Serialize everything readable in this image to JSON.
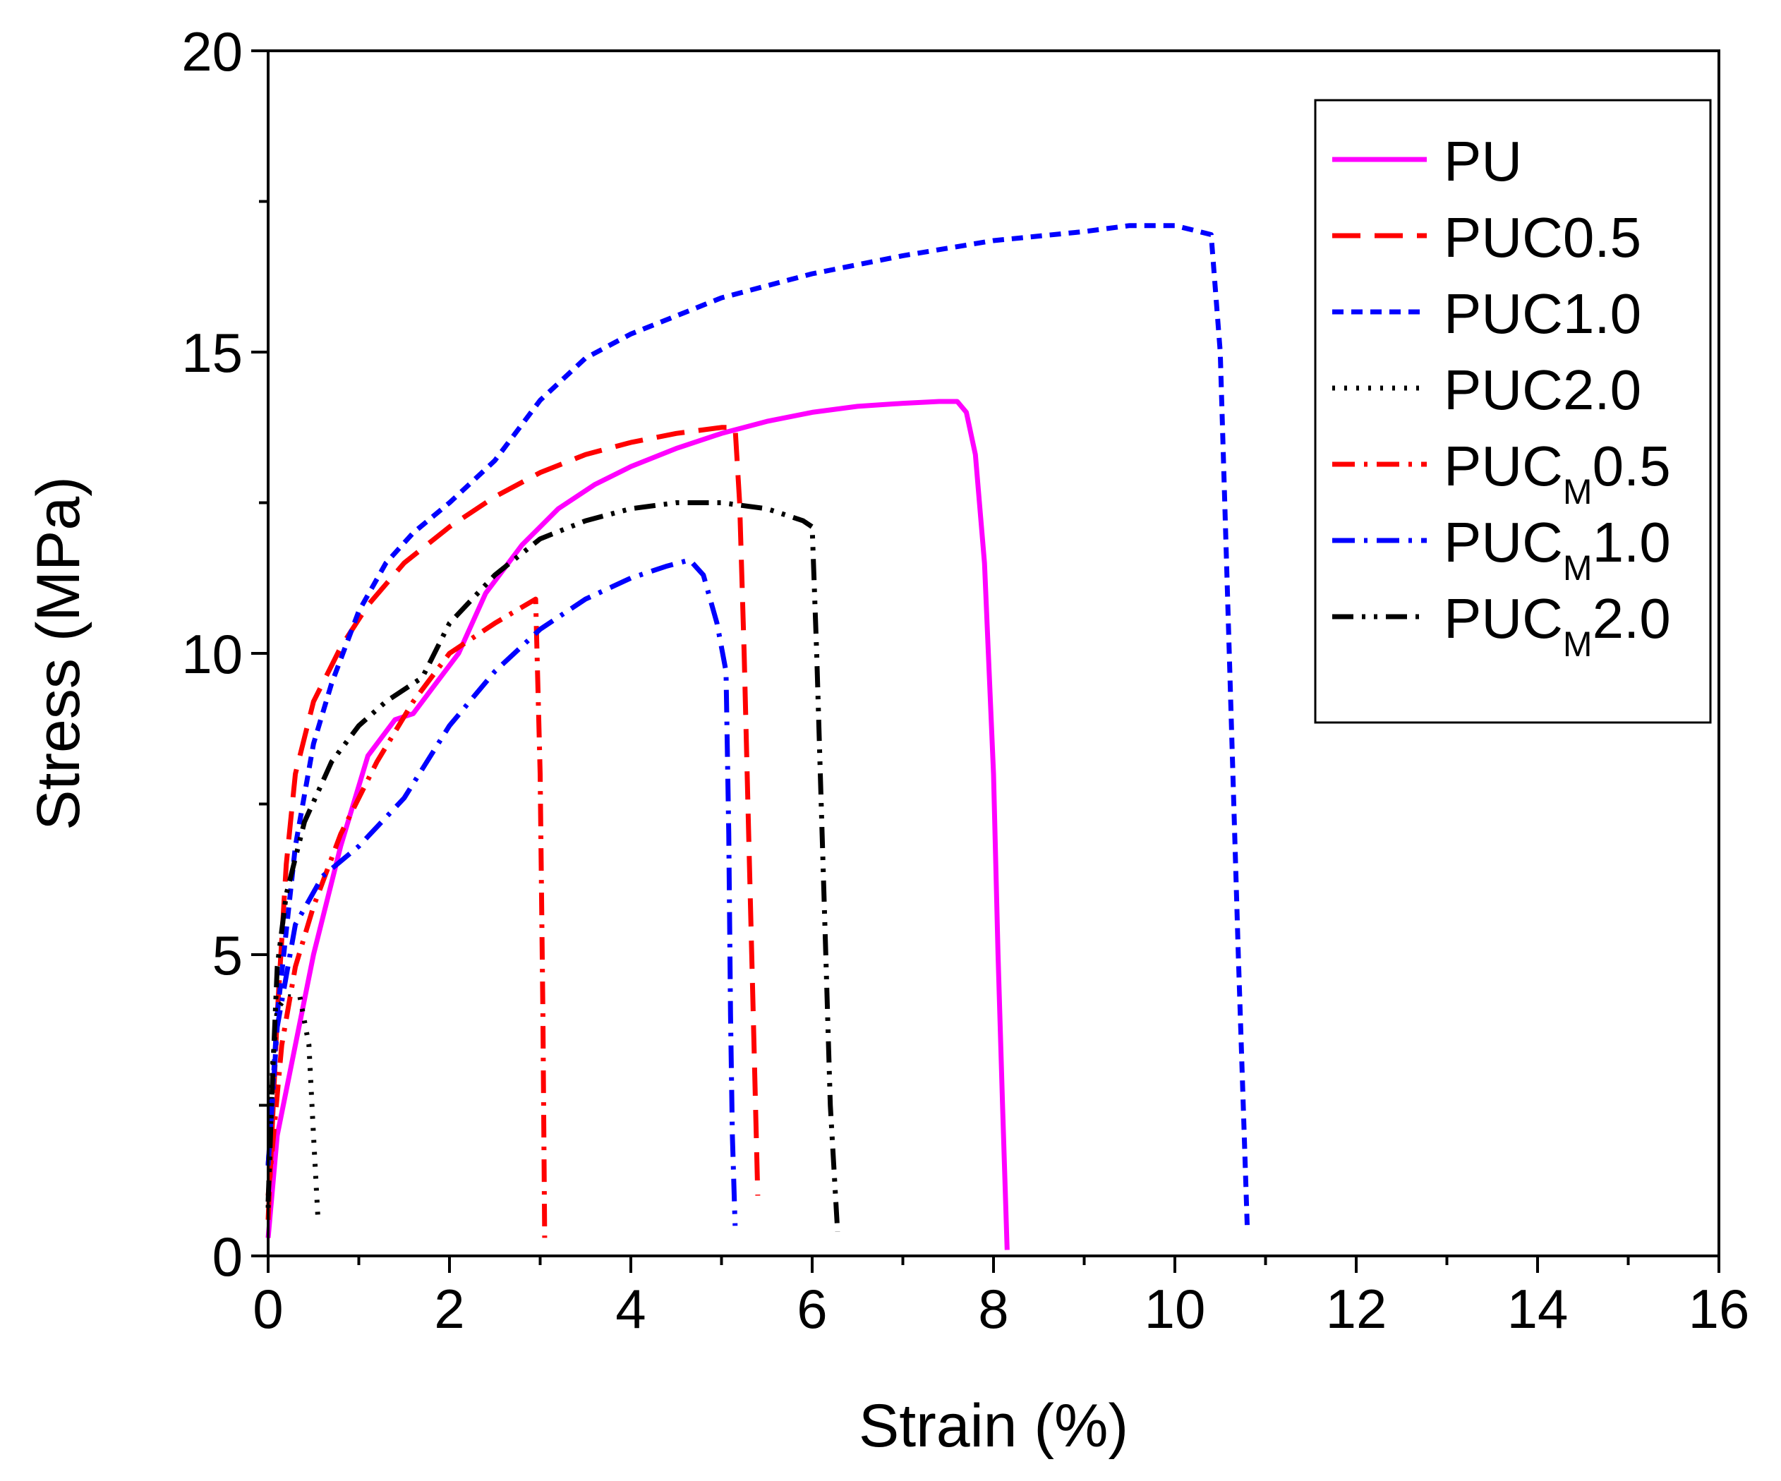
{
  "chart_data": {
    "type": "line",
    "title": "",
    "xlabel": "Strain (%)",
    "ylabel": "Stress (MPa)",
    "xlim": [
      0,
      16
    ],
    "ylim": [
      0,
      20
    ],
    "x_ticks": [
      0,
      2,
      4,
      6,
      8,
      10,
      12,
      14,
      16
    ],
    "y_ticks": [
      0,
      5,
      10,
      15,
      20
    ],
    "x_tick_labels": [
      "0",
      "2",
      "4",
      "6",
      "8",
      "10",
      "12",
      "14",
      "16"
    ],
    "y_tick_labels": [
      "0",
      "5",
      "10",
      "15",
      "20"
    ],
    "grid": false,
    "legend_position": "top-right",
    "series": [
      {
        "name": "PU",
        "label_main": "PU",
        "label_sub": "",
        "label_tail": "",
        "color": "#ff00ff",
        "dash": "solid",
        "points": [
          [
            0,
            0.3
          ],
          [
            0.1,
            2.0
          ],
          [
            0.3,
            3.5
          ],
          [
            0.5,
            5.0
          ],
          [
            0.8,
            6.8
          ],
          [
            1.1,
            8.3
          ],
          [
            1.4,
            8.9
          ],
          [
            1.6,
            9.0
          ],
          [
            1.8,
            9.4
          ],
          [
            2.1,
            10.0
          ],
          [
            2.4,
            11.0
          ],
          [
            2.8,
            11.8
          ],
          [
            3.2,
            12.4
          ],
          [
            3.6,
            12.8
          ],
          [
            4.0,
            13.1
          ],
          [
            4.5,
            13.4
          ],
          [
            5.0,
            13.65
          ],
          [
            5.5,
            13.85
          ],
          [
            6.0,
            14.0
          ],
          [
            6.5,
            14.1
          ],
          [
            7.0,
            14.15
          ],
          [
            7.4,
            14.18
          ],
          [
            7.6,
            14.18
          ],
          [
            7.7,
            14.0
          ],
          [
            7.8,
            13.3
          ],
          [
            7.9,
            11.5
          ],
          [
            8.0,
            8.0
          ],
          [
            8.05,
            5.0
          ],
          [
            8.1,
            2.5
          ],
          [
            8.15,
            0.1
          ]
        ]
      },
      {
        "name": "PUC0.5",
        "label_main": "PUC0.5",
        "label_sub": "",
        "label_tail": "",
        "color": "#ff0000",
        "dash": "long-dash",
        "points": [
          [
            0,
            0.6
          ],
          [
            0.1,
            4.0
          ],
          [
            0.2,
            6.5
          ],
          [
            0.3,
            8.0
          ],
          [
            0.5,
            9.2
          ],
          [
            0.8,
            10.1
          ],
          [
            1.1,
            10.8
          ],
          [
            1.5,
            11.5
          ],
          [
            2.0,
            12.1
          ],
          [
            2.5,
            12.6
          ],
          [
            3.0,
            13.0
          ],
          [
            3.5,
            13.3
          ],
          [
            4.0,
            13.5
          ],
          [
            4.5,
            13.65
          ],
          [
            5.0,
            13.75
          ],
          [
            5.15,
            13.75
          ],
          [
            5.2,
            12.5
          ],
          [
            5.25,
            10.0
          ],
          [
            5.3,
            7.0
          ],
          [
            5.35,
            4.0
          ],
          [
            5.4,
            1.0
          ]
        ]
      },
      {
        "name": "PUC1.0",
        "label_main": "PUC1.0",
        "label_sub": "",
        "label_tail": "",
        "color": "#0000ff",
        "dash": "short-dash",
        "points": [
          [
            0,
            1.5
          ],
          [
            0.1,
            4.0
          ],
          [
            0.3,
            6.8
          ],
          [
            0.5,
            8.5
          ],
          [
            0.7,
            9.5
          ],
          [
            1.0,
            10.7
          ],
          [
            1.3,
            11.5
          ],
          [
            1.6,
            12.0
          ],
          [
            2.0,
            12.5
          ],
          [
            2.5,
            13.2
          ],
          [
            3.0,
            14.2
          ],
          [
            3.5,
            14.9
          ],
          [
            4.0,
            15.3
          ],
          [
            5.0,
            15.9
          ],
          [
            6.0,
            16.3
          ],
          [
            7.0,
            16.6
          ],
          [
            8.0,
            16.85
          ],
          [
            9.0,
            17.0
          ],
          [
            9.5,
            17.1
          ],
          [
            10.0,
            17.1
          ],
          [
            10.4,
            16.95
          ],
          [
            10.5,
            15.0
          ],
          [
            10.6,
            10.0
          ],
          [
            10.7,
            5.0
          ],
          [
            10.8,
            0.4
          ]
        ]
      },
      {
        "name": "PUC2.0",
        "label_main": "PUC2.0",
        "label_sub": "",
        "label_tail": "",
        "color": "#000000",
        "dash": "dot",
        "points": [
          [
            0,
            0.8
          ],
          [
            0.05,
            3.2
          ],
          [
            0.1,
            4.1
          ],
          [
            0.2,
            4.3
          ],
          [
            0.35,
            4.3
          ],
          [
            0.45,
            3.5
          ],
          [
            0.5,
            2.0
          ],
          [
            0.55,
            0.6
          ]
        ]
      },
      {
        "name": "PUCM0.5",
        "label_main": "PUC",
        "label_sub": "M",
        "label_tail": "0.5",
        "color": "#ff0000",
        "dash": "dash-dot",
        "points": [
          [
            0,
            1.0
          ],
          [
            0.15,
            3.5
          ],
          [
            0.3,
            4.8
          ],
          [
            0.5,
            5.8
          ],
          [
            0.8,
            7.0
          ],
          [
            1.2,
            8.2
          ],
          [
            1.6,
            9.2
          ],
          [
            2.0,
            10.0
          ],
          [
            2.5,
            10.5
          ],
          [
            2.95,
            10.9
          ],
          [
            3.0,
            8.0
          ],
          [
            3.03,
            4.0
          ],
          [
            3.05,
            0.3
          ]
        ]
      },
      {
        "name": "PUCM1.0",
        "label_main": "PUC",
        "label_sub": "M",
        "label_tail": "1.0",
        "color": "#0000ff",
        "dash": "dash-dot",
        "points": [
          [
            0,
            1.5
          ],
          [
            0.1,
            3.8
          ],
          [
            0.3,
            5.5
          ],
          [
            0.6,
            6.3
          ],
          [
            1.0,
            6.8
          ],
          [
            1.5,
            7.6
          ],
          [
            2.0,
            8.8
          ],
          [
            2.5,
            9.7
          ],
          [
            3.0,
            10.4
          ],
          [
            3.5,
            10.9
          ],
          [
            4.0,
            11.25
          ],
          [
            4.4,
            11.45
          ],
          [
            4.65,
            11.55
          ],
          [
            4.8,
            11.3
          ],
          [
            4.95,
            10.5
          ],
          [
            5.05,
            9.7
          ],
          [
            5.08,
            7.0
          ],
          [
            5.1,
            4.0
          ],
          [
            5.12,
            2.0
          ],
          [
            5.15,
            0.5
          ]
        ]
      },
      {
        "name": "PUCM2.0",
        "label_main": "PUC",
        "label_sub": "M",
        "label_tail": "2.0",
        "color": "#000000",
        "dash": "dash-dot-dot",
        "points": [
          [
            0,
            0.9
          ],
          [
            0.05,
            3.0
          ],
          [
            0.1,
            4.8
          ],
          [
            0.2,
            6.0
          ],
          [
            0.4,
            7.2
          ],
          [
            0.7,
            8.2
          ],
          [
            1.0,
            8.8
          ],
          [
            1.3,
            9.2
          ],
          [
            1.7,
            9.6
          ],
          [
            2.0,
            10.5
          ],
          [
            2.5,
            11.3
          ],
          [
            3.0,
            11.9
          ],
          [
            3.5,
            12.2
          ],
          [
            4.0,
            12.4
          ],
          [
            4.5,
            12.5
          ],
          [
            5.0,
            12.5
          ],
          [
            5.5,
            12.4
          ],
          [
            5.9,
            12.2
          ],
          [
            6.0,
            12.1
          ],
          [
            6.05,
            10.0
          ],
          [
            6.1,
            7.5
          ],
          [
            6.15,
            5.0
          ],
          [
            6.2,
            2.5
          ],
          [
            6.28,
            0.4
          ]
        ]
      }
    ]
  }
}
